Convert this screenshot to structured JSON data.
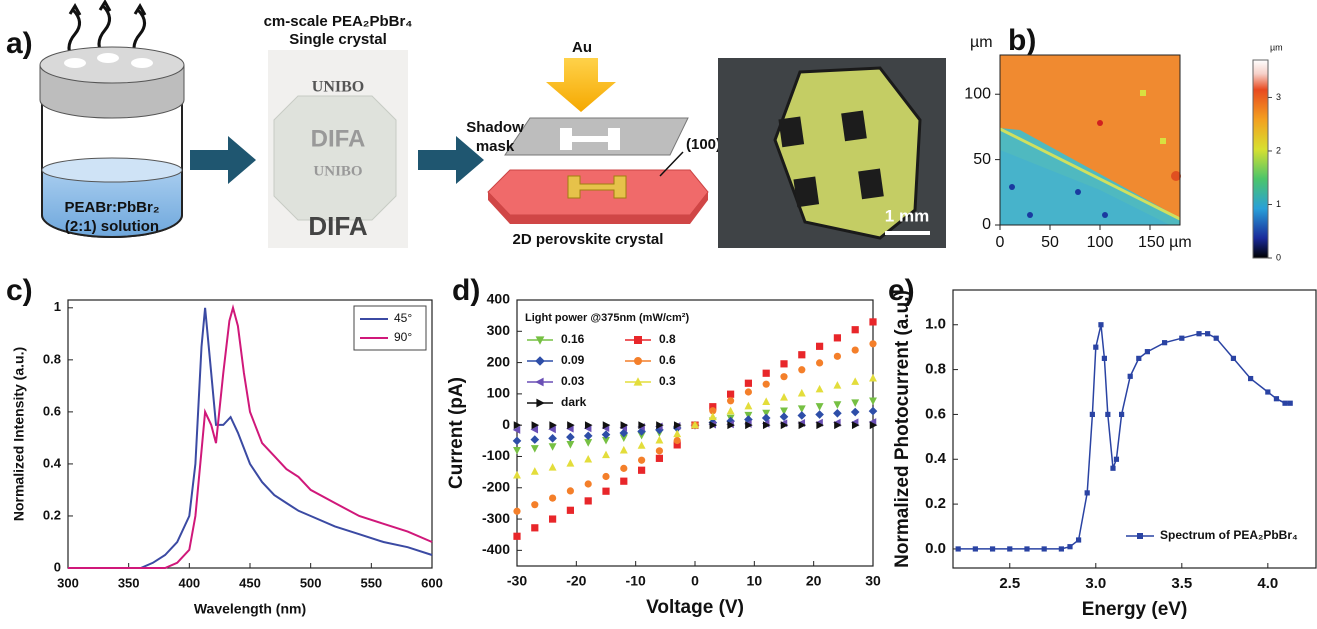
{
  "panel_labels": {
    "a": "a)",
    "b": "b)",
    "c": "c)",
    "d": "d)",
    "e": "e)"
  },
  "schematic": {
    "solution": [
      "PEABr:PbBr₂",
      "(2:1) solution"
    ],
    "crystal_title": [
      "cm-scale PEA₂PbBr₄",
      "Single crystal"
    ],
    "photo_text": [
      "UNIBO",
      "DIFA",
      "UNIBO",
      "DIFA"
    ],
    "au": "Au",
    "shadow_mask": [
      "Shadow",
      "mask"
    ],
    "facet": "(100)",
    "crystal_label": "2D perovskite crystal",
    "scale_bar": "1 mm"
  },
  "chart_data": [
    {
      "type": "map",
      "y_unit": "µm",
      "xlim": [
        0,
        180
      ],
      "ylim": [
        0,
        130
      ],
      "xticks": [
        0,
        50,
        100,
        {
          "value": 150,
          "label": "150 µm"
        }
      ],
      "yticks": [
        0,
        50,
        100
      ],
      "colorbar": {
        "unit": "µm",
        "lim": [
          0,
          3.7
        ],
        "ticks": [
          0,
          1,
          2,
          3
        ]
      }
    },
    {
      "type": "line",
      "xlabel": "Wavelength (nm)",
      "ylabel": "Normalized Intensity (a.u.)",
      "xlim": [
        300,
        600
      ],
      "ylim": [
        0,
        1.03
      ],
      "xticks": [
        300,
        350,
        400,
        450,
        500,
        550,
        600
      ],
      "yticks": [
        0,
        0.2,
        0.4,
        0.6,
        0.8,
        1
      ],
      "legend": "upper right",
      "series": [
        {
          "name": "45°",
          "color": "#3b4aa3",
          "x": [
            300,
            320,
            340,
            360,
            370,
            380,
            390,
            400,
            405,
            410,
            413,
            418,
            422,
            428,
            434,
            440,
            450,
            460,
            470,
            480,
            490,
            500,
            520,
            540,
            560,
            580,
            600
          ],
          "values": [
            0,
            0,
            0,
            0,
            0.02,
            0.05,
            0.1,
            0.2,
            0.4,
            0.85,
            1,
            0.75,
            0.55,
            0.55,
            0.58,
            0.52,
            0.4,
            0.33,
            0.28,
            0.25,
            0.22,
            0.2,
            0.16,
            0.13,
            0.1,
            0.08,
            0.05
          ]
        },
        {
          "name": "90°",
          "color": "#d0187a",
          "x": [
            300,
            340,
            380,
            390,
            400,
            405,
            410,
            413,
            418,
            422,
            428,
            433,
            436,
            440,
            445,
            450,
            460,
            470,
            480,
            490,
            500,
            520,
            540,
            560,
            580,
            600
          ],
          "values": [
            0,
            0,
            0,
            0.02,
            0.07,
            0.2,
            0.45,
            0.6,
            0.55,
            0.48,
            0.75,
            0.95,
            1,
            0.93,
            0.75,
            0.6,
            0.48,
            0.43,
            0.38,
            0.35,
            0.3,
            0.25,
            0.2,
            0.17,
            0.14,
            0.1
          ]
        }
      ]
    },
    {
      "type": "scatter",
      "xlabel": "Voltage (V)",
      "ylabel": "Current (pA)",
      "legend": "upper left",
      "legend_title": "Light power @375nm (mW/cm²)",
      "legend_columns": 2,
      "xlim": [
        -30,
        30
      ],
      "ylim": [
        -450,
        400
      ],
      "xticks": [
        -30,
        -20,
        -10,
        0,
        10,
        20,
        30
      ],
      "yticks": [
        -400,
        -300,
        -200,
        -100,
        0,
        100,
        200,
        300,
        400
      ],
      "x": [
        -30,
        -27,
        -24,
        -21,
        -18,
        -15,
        -12,
        -9,
        -6,
        -3,
        0,
        3,
        6,
        9,
        12,
        15,
        18,
        21,
        24,
        27,
        30
      ],
      "series": [
        {
          "name": "0.16",
          "color": "#76c043",
          "marker": "triangle-down",
          "values": [
            -80,
            -74,
            -68,
            -61,
            -55,
            -48,
            -40,
            -32,
            -24,
            -14,
            0,
            14,
            23,
            32,
            39,
            46,
            53,
            60,
            66,
            72,
            78
          ]
        },
        {
          "name": "0.09",
          "color": "#2e4ea8",
          "marker": "diamond",
          "values": [
            -50,
            -46,
            -42,
            -38,
            -34,
            -30,
            -25,
            -20,
            -15,
            -9,
            0,
            8,
            13,
            18,
            23,
            27,
            31,
            34,
            38,
            42,
            45
          ]
        },
        {
          "name": "0.03",
          "color": "#6a4fb5",
          "marker": "triangle-left",
          "values": [
            -15,
            -14,
            -13,
            -11,
            -10,
            -9,
            -8,
            -6,
            -4,
            -3,
            0,
            2,
            3,
            4,
            5,
            6,
            7,
            8,
            8,
            9,
            10
          ]
        },
        {
          "name": "dark",
          "color": "#111111",
          "marker": "triangle-right",
          "values": [
            0,
            0,
            0,
            0,
            0,
            0,
            0,
            0,
            0,
            0,
            0,
            0,
            0,
            0,
            0,
            0,
            0,
            0,
            0,
            0,
            0
          ]
        },
        {
          "name": "0.8",
          "color": "#e8262a",
          "marker": "square",
          "values": [
            -355,
            -328,
            -300,
            -272,
            -242,
            -211,
            -179,
            -144,
            -106,
            -63,
            0,
            59,
            99,
            134,
            166,
            196,
            225,
            252,
            279,
            305,
            330
          ]
        },
        {
          "name": "0.6",
          "color": "#f47f2a",
          "marker": "circle",
          "values": [
            -275,
            -254,
            -233,
            -210,
            -188,
            -164,
            -138,
            -112,
            -82,
            -49,
            0,
            46,
            78,
            106,
            131,
            155,
            177,
            199,
            220,
            240,
            260
          ]
        },
        {
          "name": "0.3",
          "color": "#e3dd3b",
          "marker": "triangle-up",
          "values": [
            -160,
            -148,
            -135,
            -122,
            -109,
            -95,
            -80,
            -65,
            -48,
            -28,
            0,
            27,
            45,
            61,
            75,
            89,
            102,
            115,
            127,
            139,
            150
          ]
        }
      ]
    },
    {
      "type": "line",
      "xlabel": "Energy (eV)",
      "ylabel": "Normalized Photocurrent (a.u.)",
      "legend": "lower right",
      "xlim": [
        2.17,
        4.28
      ],
      "ylim": [
        -0.085,
        1.155
      ],
      "xticks": [
        2.5,
        {
          "value": 3,
          "label": "3.0"
        },
        3.5,
        {
          "value": 4,
          "label": "4.0"
        }
      ],
      "yticks": [
        {
          "value": 0,
          "label": "0.0"
        },
        0.2,
        0.4,
        0.6,
        0.8,
        {
          "value": 1,
          "label": "1.0"
        }
      ],
      "series": [
        {
          "name": "Spectrum of PEA₂PbBr₄",
          "color": "#2a43a3",
          "marker": "square",
          "x": [
            2.2,
            2.3,
            2.4,
            2.5,
            2.6,
            2.7,
            2.8,
            2.85,
            2.9,
            2.95,
            2.98,
            3.0,
            3.03,
            3.05,
            3.07,
            3.1,
            3.12,
            3.15,
            3.2,
            3.25,
            3.3,
            3.4,
            3.5,
            3.6,
            3.65,
            3.7,
            3.8,
            3.9,
            4.0,
            4.05,
            4.1,
            4.13
          ],
          "values": [
            0,
            0,
            0,
            0,
            0,
            0,
            0,
            0.01,
            0.04,
            0.25,
            0.6,
            0.9,
            1,
            0.85,
            0.6,
            0.36,
            0.4,
            0.6,
            0.77,
            0.85,
            0.88,
            0.92,
            0.94,
            0.96,
            0.96,
            0.94,
            0.85,
            0.76,
            0.7,
            0.67,
            0.65,
            0.65
          ]
        }
      ]
    }
  ]
}
